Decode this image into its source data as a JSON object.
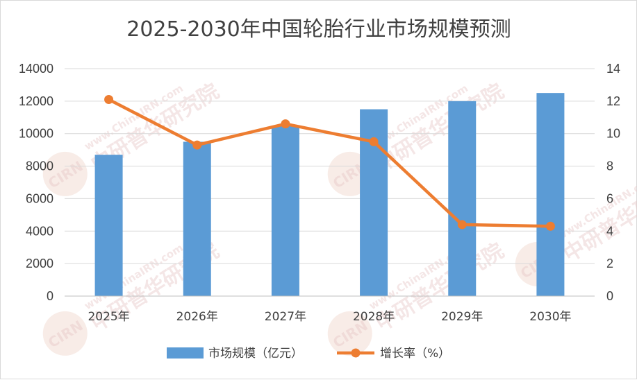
{
  "chart_data": {
    "type": "bar",
    "title": "2025-2030年中国轮胎行业市场规模预测",
    "categories": [
      "2025年",
      "2026年",
      "2027年",
      "2028年",
      "2029年",
      "2030年"
    ],
    "series": [
      {
        "name": "市场规模（亿元）",
        "type": "bar",
        "axis": "left",
        "color": "#5b9bd5",
        "values": [
          8700,
          9500,
          10500,
          11500,
          12000,
          12500
        ]
      },
      {
        "name": "增长率（%）",
        "type": "line",
        "axis": "right",
        "color": "#ed7d31",
        "values": [
          12.1,
          9.3,
          10.6,
          9.5,
          4.4,
          4.3
        ]
      }
    ],
    "ylim_left": [
      0,
      14000
    ],
    "yticks_left": [
      "0",
      "2000",
      "4000",
      "6000",
      "8000",
      "10000",
      "12000",
      "14000"
    ],
    "ylim_right": [
      0,
      14
    ],
    "yticks_right": [
      "0",
      "2",
      "4",
      "6",
      "8",
      "10",
      "12",
      "14"
    ],
    "grid": true,
    "legend_position": "bottom"
  },
  "watermark": {
    "text_cn": "中研普华研究院",
    "text_en": "www.ChinaIRN.com",
    "logo": "CIRN"
  }
}
